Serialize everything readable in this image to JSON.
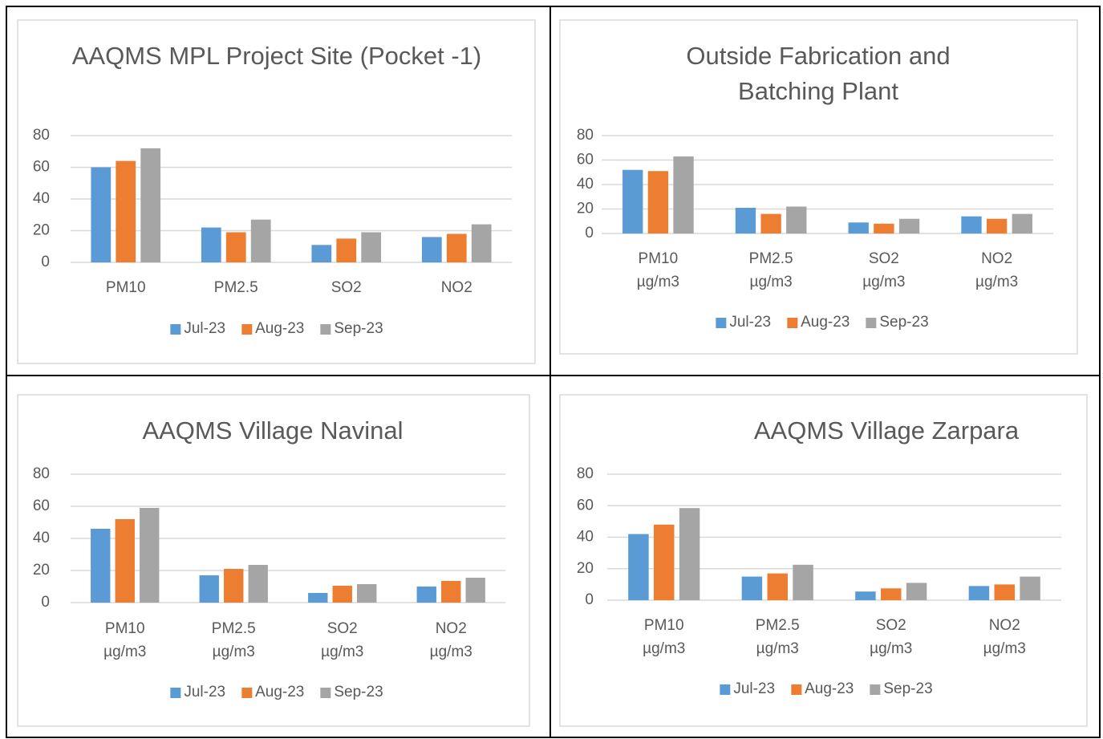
{
  "chart_data": [
    {
      "type": "bar",
      "title": "AAQMS MPL Project Site (Pocket -1)",
      "categories": [
        "PM10",
        "PM2.5",
        "SO2",
        "NO2"
      ],
      "series": [
        {
          "name": "Jul-23",
          "color": "#5b9bd5",
          "values": [
            60,
            22,
            11,
            16
          ]
        },
        {
          "name": "Aug-23",
          "color": "#ed7d31",
          "values": [
            64,
            19,
            15,
            18
          ]
        },
        {
          "name": "Sep-23",
          "color": "#a5a5a5",
          "values": [
            72,
            27,
            19,
            24
          ]
        }
      ],
      "ylim": [
        0,
        80
      ],
      "yticks": [
        0,
        20,
        40,
        60,
        80
      ],
      "grid": true,
      "legend": "bottom"
    },
    {
      "type": "bar",
      "title": "Outside Fabrication and Batching Plant",
      "categories": [
        "PM10 µg/m3",
        "PM2.5 µg/m3",
        "SO2 µg/m3",
        "NO2 µg/m3"
      ],
      "series": [
        {
          "name": "Jul-23",
          "color": "#5b9bd5",
          "values": [
            52,
            21,
            9,
            14
          ]
        },
        {
          "name": "Aug-23",
          "color": "#ed7d31",
          "values": [
            51,
            16,
            8,
            12
          ]
        },
        {
          "name": "Sep-23",
          "color": "#a5a5a5",
          "values": [
            63,
            22,
            12,
            16
          ]
        }
      ],
      "ylim": [
        0,
        80
      ],
      "yticks": [
        0,
        20,
        40,
        60,
        80
      ],
      "grid": true,
      "legend": "bottom"
    },
    {
      "type": "bar",
      "title": "AAQMS Village Navinal",
      "categories": [
        "PM10 µg/m3",
        "PM2.5 µg/m3",
        "SO2 µg/m3",
        "NO2 µg/m3"
      ],
      "series": [
        {
          "name": "Jul-23",
          "color": "#5b9bd5",
          "values": [
            46,
            17,
            6,
            10
          ]
        },
        {
          "name": "Aug-23",
          "color": "#ed7d31",
          "values": [
            52,
            21,
            10.5,
            13.5
          ]
        },
        {
          "name": "Sep-23",
          "color": "#a5a5a5",
          "values": [
            59,
            23.5,
            11.5,
            15.5
          ]
        }
      ],
      "ylim": [
        0,
        80
      ],
      "yticks": [
        0,
        20,
        40,
        60,
        80
      ],
      "grid": true,
      "legend": "bottom"
    },
    {
      "type": "bar",
      "title": "AAQMS Village Zarpara",
      "categories": [
        "PM10 µg/m3",
        "PM2.5 µg/m3",
        "SO2 µg/m3",
        "NO2 µg/m3"
      ],
      "series": [
        {
          "name": "Jul-23",
          "color": "#5b9bd5",
          "values": [
            42,
            15,
            5.5,
            9
          ]
        },
        {
          "name": "Aug-23",
          "color": "#ed7d31",
          "values": [
            48,
            17,
            7.5,
            10
          ]
        },
        {
          "name": "Sep-23",
          "color": "#a5a5a5",
          "values": [
            58.5,
            22.5,
            11,
            15
          ]
        }
      ],
      "ylim": [
        0,
        80
      ],
      "yticks": [
        0,
        20,
        40,
        60,
        80
      ],
      "grid": true,
      "legend": "bottom"
    }
  ]
}
